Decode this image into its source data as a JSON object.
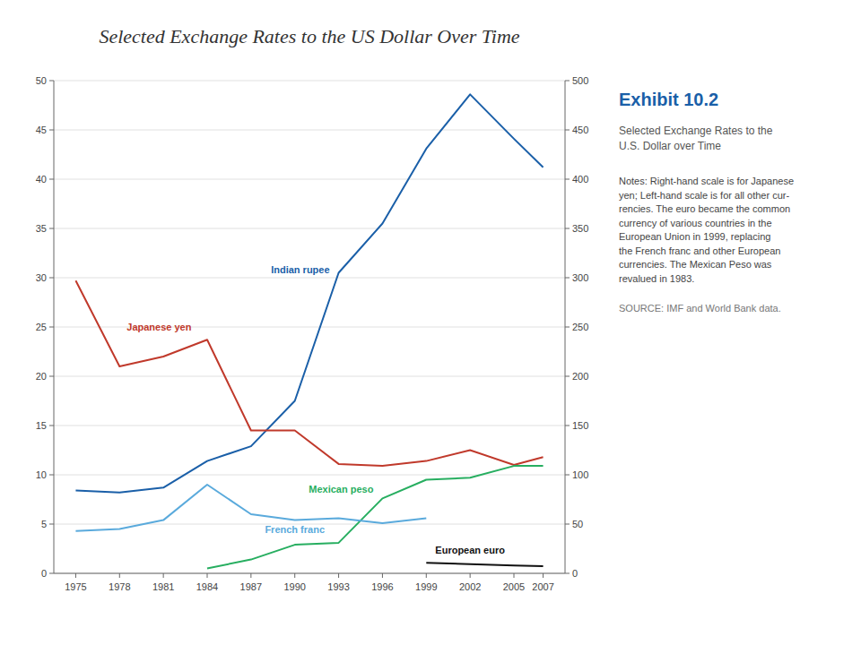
{
  "chart_data": {
    "type": "line",
    "title": "Selected Exchange Rates to the US Dollar Over Time",
    "annotations": [
      "Exhibit 10.2",
      "Selected Exchange Rates to the\nU.S. Dollar over Time",
      "Notes: Right-hand scale is for Japanese\nyen; Left-hand scale is for all other cur-\nrencies. The euro became the common\ncurrency of various countries in the\nEuropean Union in 1999, replacing\nthe French franc and other European\ncurrencies. The Mexican Peso was\nrevalued in 1983.",
      "SOURCE: IMF and World Bank data."
    ],
    "x": [
      1975,
      1978,
      1981,
      1984,
      1987,
      1990,
      1993,
      1996,
      1999,
      2002,
      2005,
      2007
    ],
    "xlim": [
      1973.5,
      2008.5
    ],
    "xticks": [
      1975,
      1978,
      1981,
      1984,
      1987,
      1990,
      1993,
      1996,
      1999,
      2002,
      2005,
      2007
    ],
    "ylim": [
      0,
      50
    ],
    "yticks": [
      0,
      5,
      10,
      15,
      20,
      25,
      30,
      35,
      40,
      45,
      50
    ],
    "y2lim": [
      0,
      500
    ],
    "y2ticks": [
      0,
      50,
      100,
      150,
      200,
      250,
      300,
      350,
      400,
      450,
      500
    ],
    "grid": true,
    "series": [
      {
        "name": "Indian rupee",
        "color": "#1a5fa8",
        "values": [
          8.4,
          8.2,
          8.7,
          11.4,
          12.9,
          17.5,
          30.5,
          35.5,
          43.1,
          48.6,
          44.1,
          41.2
        ]
      },
      {
        "name": "Japanese yen",
        "color": "#c0392b",
        "axis": "y2",
        "values": [
          297,
          210,
          220,
          237,
          145,
          145,
          111,
          109,
          114,
          125,
          110,
          118
        ]
      },
      {
        "name": "Mexican peso",
        "color": "#27ae60",
        "values": [
          null,
          null,
          null,
          0.5,
          1.4,
          2.9,
          3.1,
          7.6,
          9.5,
          9.7,
          10.9,
          10.9
        ]
      },
      {
        "name": "French franc",
        "color": "#5aaadc",
        "values": [
          4.3,
          4.5,
          5.4,
          9.0,
          6.0,
          5.4,
          5.6,
          5.1,
          5.6,
          null,
          null,
          null
        ]
      },
      {
        "name": "European euro",
        "color": "#111111",
        "values": [
          null,
          null,
          null,
          null,
          null,
          null,
          null,
          null,
          1.06,
          0.94,
          0.8,
          0.73
        ]
      }
    ]
  }
}
